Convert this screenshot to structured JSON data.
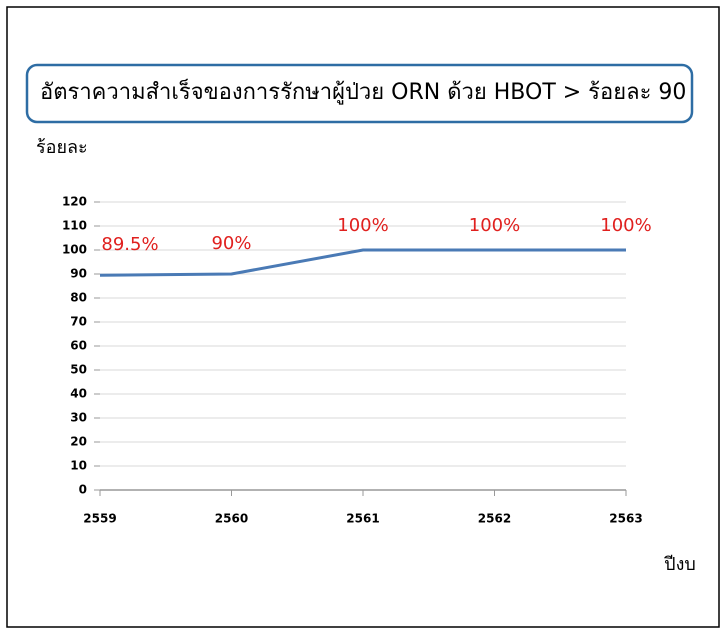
{
  "chart_data": {
    "type": "line",
    "title": "อัตราความสำเร็จของการรักษาผู้ป่วย ORN ด้วย HBOT > ร้อยละ 90",
    "y_label": "ร้อยละ",
    "x_label": "ปีงบ",
    "x": [
      2559,
      2560,
      2561,
      2562,
      2563
    ],
    "xlim": [
      2559,
      2563
    ],
    "xticks": [
      2559,
      2560,
      2561,
      2562,
      2563
    ],
    "series": [
      {
        "values": [
          89.5,
          90,
          100,
          100,
          100
        ],
        "value_labels": [
          "89.5%",
          "90%",
          "100%",
          "100%",
          "100%"
        ],
        "color": "#4a7ab5",
        "label_color": "#e0201e"
      }
    ],
    "ylim": [
      0,
      120
    ],
    "yticks": [
      0,
      10,
      20,
      30,
      40,
      50,
      60,
      70,
      80,
      90,
      100,
      110,
      120
    ],
    "grid": true
  }
}
